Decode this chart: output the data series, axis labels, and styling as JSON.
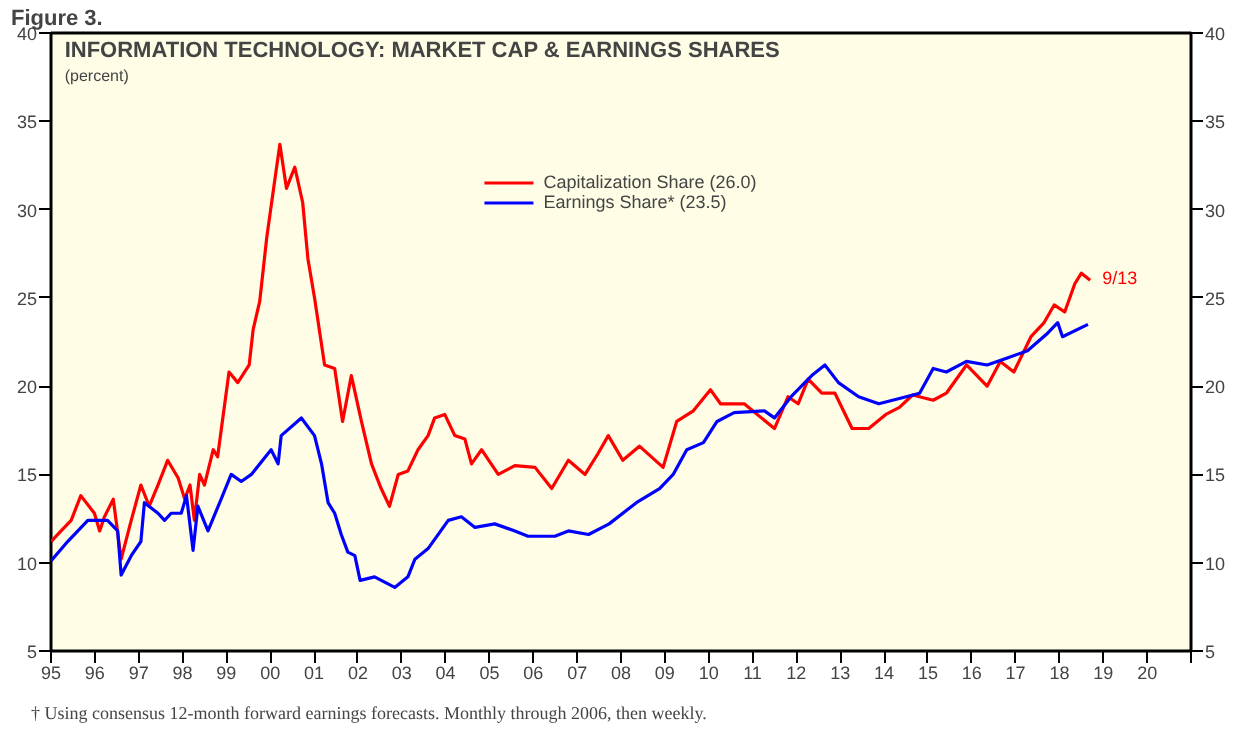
{
  "chart_data": {
    "type": "line",
    "title": "INFORMATION TECHNOLOGY: MARKET CAP & EARNINGS SHARES",
    "subtitle": "(percent)",
    "annotations": [
      "Figure 3.",
      "† Using consensus 12-month forward earnings forecasts. Monthly through 2006, then weekly.",
      {
        "text": "9/13",
        "x": 2018.7,
        "y": 26
      }
    ],
    "series": [
      {
        "name": "Capitalization Share (26.0)",
        "color": "#ff0000",
        "x": [
          1995.0,
          1995.23,
          1995.46,
          1995.68,
          1995.99,
          1996.11,
          1996.22,
          1996.42,
          1996.6,
          1996.83,
          1997.05,
          1997.24,
          1997.44,
          1997.66,
          1997.9,
          1998.05,
          1998.17,
          1998.27,
          1998.39,
          1998.5,
          1998.7,
          1998.8,
          1999.06,
          1999.26,
          1999.52,
          1999.61,
          1999.76,
          1999.92,
          2000.1,
          2000.22,
          2000.37,
          2000.56,
          2000.74,
          2000.86,
          2001.01,
          2001.24,
          2001.47,
          2001.65,
          2001.85,
          2002.08,
          2002.31,
          2002.53,
          2002.72,
          2002.92,
          2003.14,
          2003.37,
          2003.6,
          2003.75,
          2003.98,
          2004.21,
          2004.44,
          2004.59,
          2004.82,
          2005.2,
          2005.58,
          2006.04,
          2006.42,
          2006.8,
          2007.18,
          2007.48,
          2007.71,
          2008.04,
          2008.42,
          2008.96,
          2009.27,
          2009.65,
          2010.04,
          2010.27,
          2010.81,
          2011.5,
          2011.81,
          2012.04,
          2012.27,
          2012.58,
          2012.88,
          2013.27,
          2013.65,
          2014.04,
          2014.35,
          2014.65,
          2015.12,
          2015.42,
          2015.88,
          2016.35,
          2016.65,
          2016.96,
          2017.35,
          2017.65,
          2017.88,
          2018.12,
          2018.35,
          2018.5,
          2018.7
        ],
        "values": [
          11.2,
          11.8,
          12.4,
          13.8,
          12.8,
          11.8,
          12.6,
          13.6,
          10.2,
          12.4,
          14.4,
          13.2,
          14.4,
          15.8,
          14.8,
          13.6,
          14.4,
          12.4,
          15.0,
          14.4,
          16.4,
          16.0,
          20.8,
          20.2,
          21.2,
          23.2,
          24.8,
          28.4,
          31.6,
          33.7,
          31.2,
          32.4,
          30.4,
          27.2,
          25.0,
          21.2,
          21.0,
          18.0,
          20.6,
          18.0,
          15.6,
          14.2,
          13.2,
          15.0,
          15.2,
          16.4,
          17.2,
          18.2,
          18.4,
          17.2,
          17.0,
          15.6,
          16.4,
          15.0,
          15.5,
          15.4,
          14.2,
          15.8,
          15.0,
          16.2,
          17.2,
          15.8,
          16.6,
          15.4,
          18.0,
          18.6,
          19.8,
          19.0,
          19.0,
          17.6,
          19.4,
          19.0,
          20.4,
          19.6,
          19.6,
          17.6,
          17.6,
          18.4,
          18.8,
          19.5,
          19.2,
          19.6,
          21.2,
          20.0,
          21.4,
          20.8,
          22.8,
          23.6,
          24.6,
          24.2,
          25.8,
          26.4,
          26.0
        ]
      },
      {
        "name": "Earnings Share* (23.5)",
        "color": "#0000ff",
        "x": [
          1995.0,
          1995.38,
          1995.84,
          1996.29,
          1996.52,
          1996.6,
          1996.83,
          1997.05,
          1997.13,
          1997.44,
          1997.59,
          1997.74,
          1997.97,
          1998.09,
          1998.24,
          1998.35,
          1998.58,
          1998.88,
          1999.11,
          1999.34,
          1999.57,
          2000.02,
          2000.18,
          2000.25,
          2000.71,
          2001.01,
          2001.17,
          2001.32,
          2001.47,
          2001.62,
          2001.77,
          2001.93,
          2002.05,
          2002.38,
          2002.84,
          2003.14,
          2003.3,
          2003.6,
          2004.06,
          2004.36,
          2004.67,
          2005.12,
          2005.58,
          2005.88,
          2006.49,
          2006.8,
          2007.26,
          2007.73,
          2008.35,
          2008.88,
          2009.19,
          2009.5,
          2009.88,
          2010.19,
          2010.58,
          2011.27,
          2011.5,
          2011.88,
          2012.35,
          2012.65,
          2012.96,
          2013.42,
          2013.88,
          2014.35,
          2014.81,
          2015.12,
          2015.42,
          2015.88,
          2016.35,
          2016.81,
          2017.27,
          2017.73,
          2017.96,
          2018.07,
          2018.65
        ],
        "values": [
          10.1,
          11.2,
          12.4,
          12.4,
          11.8,
          9.3,
          10.4,
          11.2,
          13.4,
          12.8,
          12.4,
          12.8,
          12.8,
          13.8,
          10.7,
          13.2,
          11.8,
          13.6,
          15.0,
          14.6,
          15.0,
          16.4,
          15.6,
          17.2,
          18.2,
          17.2,
          15.6,
          13.4,
          12.8,
          11.6,
          10.6,
          10.4,
          9.0,
          9.2,
          8.6,
          9.2,
          10.2,
          10.8,
          12.4,
          12.6,
          12.0,
          12.2,
          11.8,
          11.5,
          11.5,
          11.8,
          11.6,
          12.2,
          13.4,
          14.2,
          15.0,
          16.4,
          16.8,
          18.0,
          18.5,
          18.6,
          18.2,
          19.4,
          20.6,
          21.2,
          20.2,
          19.4,
          19.0,
          19.3,
          19.6,
          21.0,
          20.8,
          21.4,
          21.2,
          21.6,
          22.0,
          23.0,
          23.6,
          22.8,
          23.5
        ]
      }
    ],
    "xlim": [
      1995,
      2021
    ],
    "xticks": [
      {
        "value": 1995,
        "label": "95"
      },
      {
        "value": 1996,
        "label": "96"
      },
      {
        "value": 1997,
        "label": "97"
      },
      {
        "value": 1998,
        "label": "98"
      },
      {
        "value": 1999,
        "label": "99"
      },
      {
        "value": 2000,
        "label": "00"
      },
      {
        "value": 2001,
        "label": "01"
      },
      {
        "value": 2002,
        "label": "02"
      },
      {
        "value": 2003,
        "label": "03"
      },
      {
        "value": 2004,
        "label": "04"
      },
      {
        "value": 2005,
        "label": "05"
      },
      {
        "value": 2006,
        "label": "06"
      },
      {
        "value": 2007,
        "label": "07"
      },
      {
        "value": 2008,
        "label": "08"
      },
      {
        "value": 2009,
        "label": "09"
      },
      {
        "value": 2010,
        "label": "10"
      },
      {
        "value": 2011,
        "label": "11"
      },
      {
        "value": 2012,
        "label": "12"
      },
      {
        "value": 2013,
        "label": "13"
      },
      {
        "value": 2014,
        "label": "14"
      },
      {
        "value": 2015,
        "label": "15"
      },
      {
        "value": 2016,
        "label": "16"
      },
      {
        "value": 2017,
        "label": "17"
      },
      {
        "value": 2018,
        "label": "18"
      },
      {
        "value": 2019,
        "label": "19"
      },
      {
        "value": 2020,
        "label": "20"
      },
      {
        "value": 2021,
        "label": null
      }
    ],
    "ylim": [
      5,
      40
    ],
    "yticks": [
      5,
      10,
      15,
      20,
      25,
      30,
      35,
      40
    ],
    "y2lim": [
      5,
      40
    ],
    "y2ticks": [
      5,
      10,
      15,
      20,
      25,
      30,
      35,
      40
    ],
    "grid": false,
    "legend": "top",
    "marker": "none",
    "line_style": "solid"
  }
}
